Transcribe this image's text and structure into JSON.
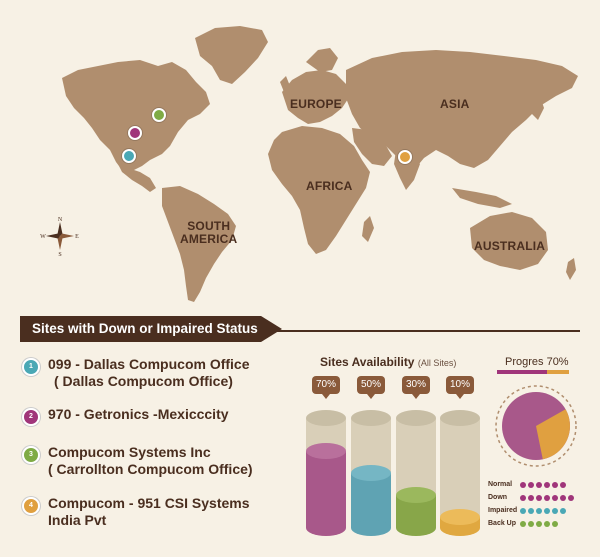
{
  "map": {
    "labels": {
      "europe": "EUROPE",
      "asia": "ASIA",
      "africa": "AFRICA",
      "south_america": "SOUTH\nAMERICA",
      "australia": "AUSTRALIA"
    },
    "compass": {
      "n": "N",
      "s": "S",
      "e": "E",
      "w": "W"
    },
    "colors": {
      "land": "#b08e6e",
      "ocean": "#f7f1e5"
    }
  },
  "section": {
    "title": "Sites with Down or Impaired Status"
  },
  "sites": [
    {
      "num": "1",
      "line1": "099 - Dallas Compucom Office",
      "line2": "( Dallas Compucom Office)",
      "color": "#4aa8b5"
    },
    {
      "num": "2",
      "line1": "970 - Getronics -Mexicccity",
      "line2": "",
      "color": "#a0357a"
    },
    {
      "num": "3",
      "line1": "Compucom Systems Inc",
      "line2": "( Carrollton Compucom Office)",
      "color": "#7fab45"
    },
    {
      "num": "4",
      "line1": "Compucom - 951 CSI Systems",
      "line2": "India Pvt",
      "color": "#e0a040"
    }
  ],
  "availability": {
    "title": "Sites Availability",
    "subtitle": "(All Sites)",
    "tubes": [
      {
        "label": "70%",
        "value": 0.7,
        "color": "#a8588a",
        "cap": "#b9709c"
      },
      {
        "label": "50%",
        "value": 0.5,
        "color": "#5fa3b3",
        "cap": "#75b6c4"
      },
      {
        "label": "30%",
        "value": 0.3,
        "color": "#88a649",
        "cap": "#9bb85d"
      },
      {
        "label": "10%",
        "value": 0.1,
        "color": "#e0a840",
        "cap": "#ecbb5a"
      }
    ]
  },
  "progress": {
    "label": "Progres 70%",
    "value": 0.7
  },
  "legend": [
    {
      "name": "Normal",
      "color": "#a0357a"
    },
    {
      "name": "Down",
      "color": "#a0357a"
    },
    {
      "name": "Impaired",
      "color": "#4aa8b5"
    },
    {
      "name": "Back Up",
      "color": "#7fab45"
    }
  ]
}
